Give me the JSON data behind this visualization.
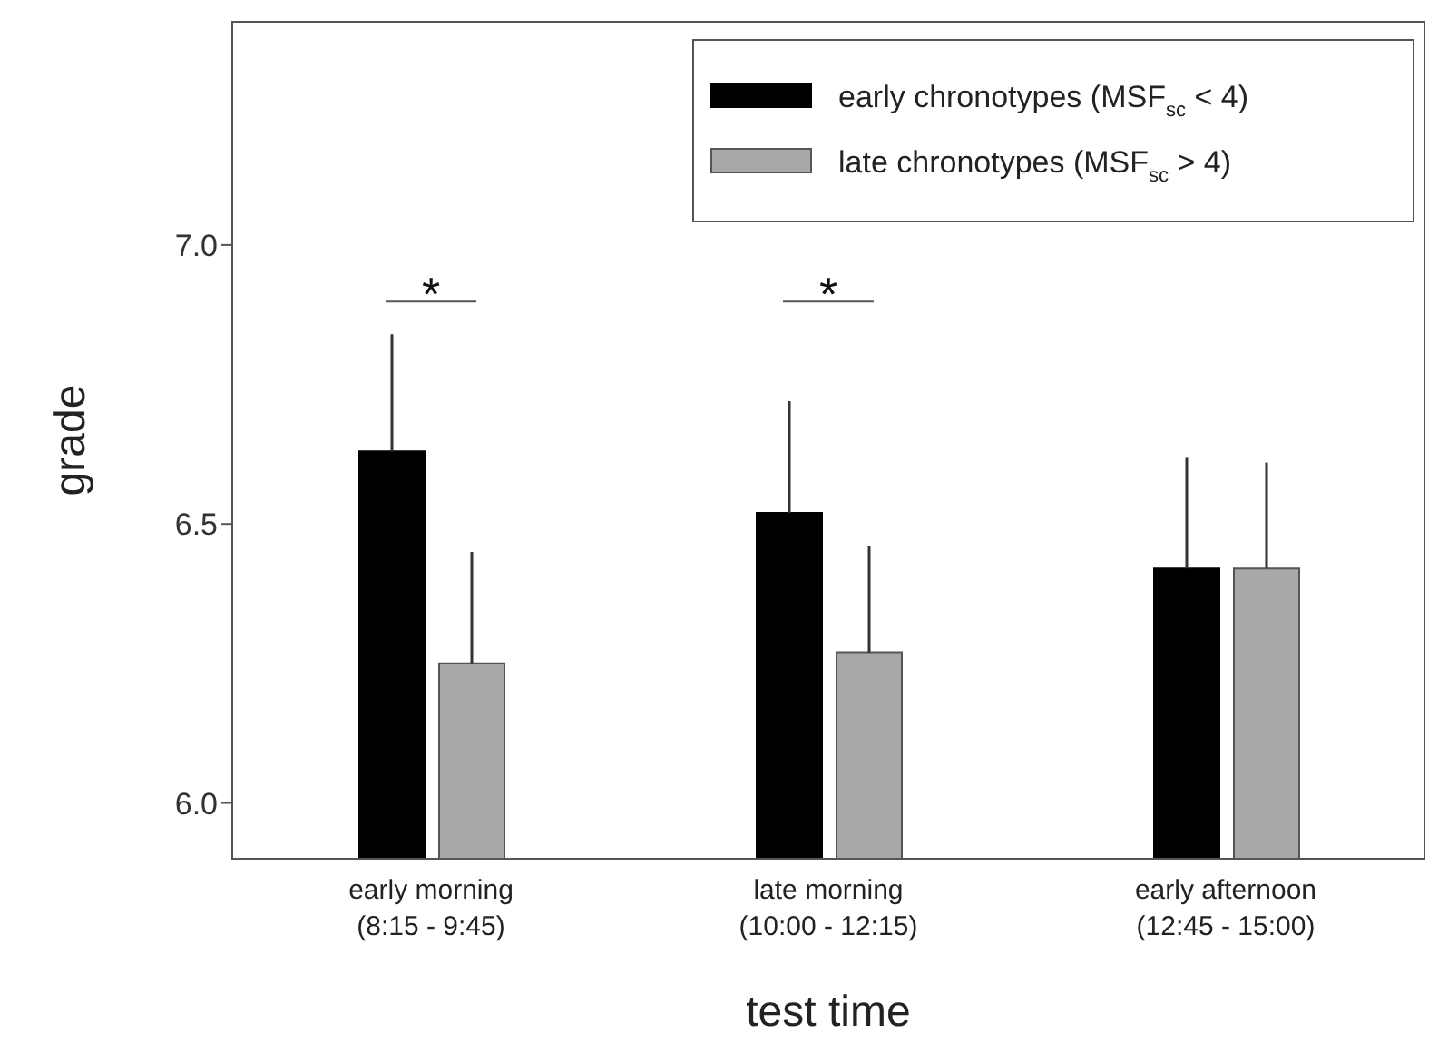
{
  "chart_data": {
    "type": "bar",
    "xlabel": "test time",
    "ylabel": "grade",
    "categories": [
      "early morning\n(8:15 - 9:45)",
      "late morning\n(10:00 - 12:15)",
      "early afternoon\n(12:45 - 15:00)"
    ],
    "series": [
      {
        "name": "early chronotypes (MSF$_{sc}$ < 4)",
        "color": "#000000",
        "values": [
          6.63,
          6.52,
          6.42
        ],
        "errors": [
          [
            6.63,
            6.84
          ],
          [
            6.52,
            6.72
          ],
          [
            6.42,
            6.62
          ]
        ]
      },
      {
        "name": "late chronotypes (MSF$_{sc}$ > 4)",
        "color": "#a8a8a8",
        "values": [
          6.25,
          6.27,
          6.42
        ],
        "errors": [
          [
            6.25,
            6.45
          ],
          [
            6.27,
            6.46
          ],
          [
            6.42,
            6.61
          ]
        ]
      }
    ],
    "ylim": [
      5.9,
      7.4
    ],
    "yticks": [
      {
        "value": 6,
        "label": "6.0"
      },
      {
        "value": 6.5,
        "label": "6.5"
      },
      {
        "value": 7,
        "label": "7.0"
      }
    ],
    "grid": false,
    "legend": "top right",
    "annotations": [
      "*",
      "*"
    ]
  }
}
